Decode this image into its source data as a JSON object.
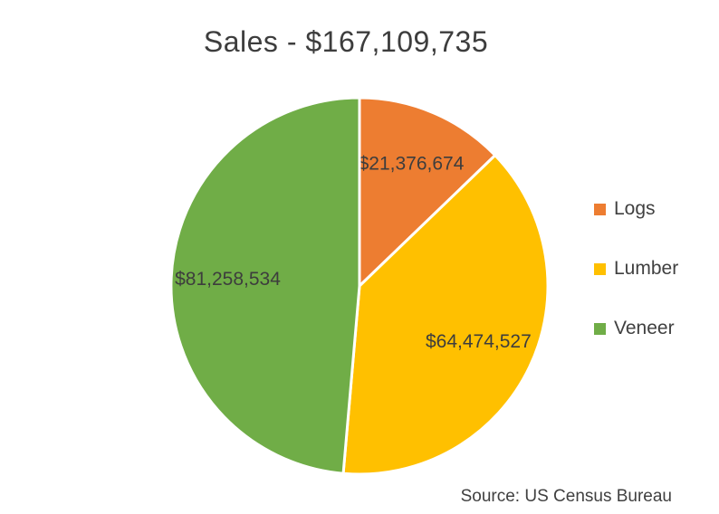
{
  "chart_data": {
    "type": "pie",
    "title": "Sales - $167,109,735",
    "total_value": 167109735,
    "slices": [
      {
        "label": "Logs",
        "value": 21376674,
        "data_label": "$21,376,674",
        "color": "#ED7D31"
      },
      {
        "label": "Lumber",
        "value": 64474527,
        "data_label": "$64,474,527",
        "color": "#FFC000"
      },
      {
        "label": "Veneer",
        "value": 81258534,
        "data_label": "$81,258,534",
        "color": "#70AD47"
      }
    ],
    "legend_position": "right",
    "legend_entries": [
      "Logs",
      "Lumber",
      "Veneer"
    ],
    "start_angle_deg": 0,
    "direction": "clockwise",
    "slice_border_color": "#ffffff",
    "source_note": "Source: US Census Bureau"
  }
}
